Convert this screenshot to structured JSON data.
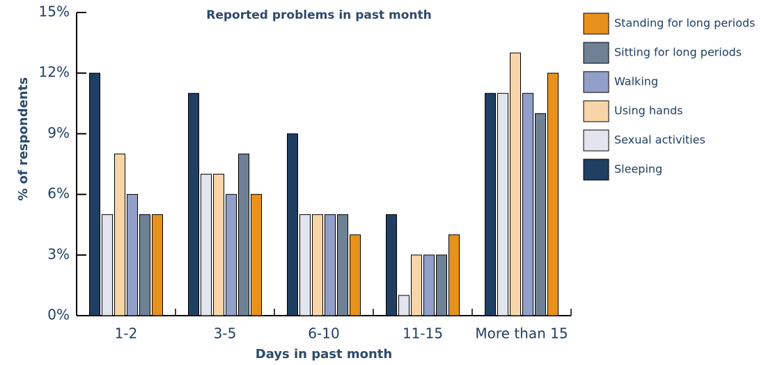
{
  "chart_data": {
    "type": "bar",
    "title": "Reported problems in past month",
    "x_label": "Days in past month",
    "y_label": "% of respondents",
    "categories": [
      "1-2",
      "3-5",
      "6-10",
      "11-15",
      "More than 15"
    ],
    "series": [
      {
        "name": "Sleeping",
        "color": "#1f3f63",
        "values": [
          12,
          11,
          9,
          5,
          11
        ]
      },
      {
        "name": "Sexual activities",
        "color": "#e2e4ee",
        "values": [
          5,
          7,
          5,
          1,
          11
        ]
      },
      {
        "name": "Using hands",
        "color": "#f8d5a9",
        "values": [
          8,
          7,
          5,
          3,
          13
        ]
      },
      {
        "name": "Walking",
        "color": "#929fc9",
        "values": [
          6,
          6,
          5,
          3,
          11
        ]
      },
      {
        "name": "Sitting for long periods",
        "color": "#6f8194",
        "values": [
          5,
          8,
          5,
          3,
          10
        ]
      },
      {
        "name": "Standing for long periods",
        "color": "#e8921c",
        "values": [
          5,
          6,
          4,
          4,
          12
        ]
      }
    ],
    "ylim": [
      0,
      15
    ],
    "yticks": [
      {
        "value": 0,
        "label": "0%"
      },
      {
        "value": 3,
        "label": "3%"
      },
      {
        "value": 6,
        "label": "6%"
      },
      {
        "value": 9,
        "label": "9%"
      },
      {
        "value": 12,
        "label": "12%"
      },
      {
        "value": 15,
        "label": "15%"
      }
    ],
    "legend": "right"
  }
}
